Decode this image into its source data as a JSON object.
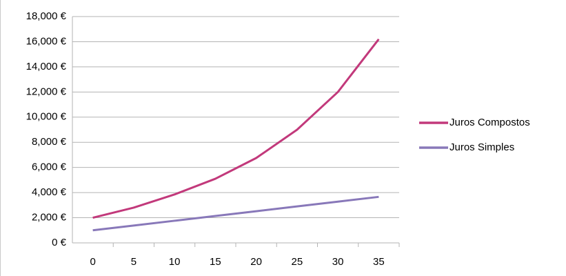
{
  "chart_data": {
    "type": "line",
    "categories": [
      "0",
      "5",
      "10",
      "15",
      "20",
      "25",
      "30",
      "35"
    ],
    "series": [
      {
        "name": "Juros Compostos",
        "color": "#c2397b",
        "values": [
          2000,
          2800,
          3850,
          5100,
          6750,
          9000,
          12000,
          16200
        ]
      },
      {
        "name": "Juros Simples",
        "color": "#8878b9",
        "values": [
          1000,
          1380,
          1760,
          2140,
          2520,
          2900,
          3280,
          3660
        ]
      }
    ],
    "ylim": [
      0,
      18000
    ],
    "yticks": [
      {
        "value": 0,
        "label": "0 €"
      },
      {
        "value": 2000,
        "label": "2,000 €"
      },
      {
        "value": 4000,
        "label": "4,000 €"
      },
      {
        "value": 6000,
        "label": "6,000 €"
      },
      {
        "value": 8000,
        "label": "8,000 €"
      },
      {
        "value": 10000,
        "label": "10,000 €"
      },
      {
        "value": 12000,
        "label": "12,000 €"
      },
      {
        "value": 14000,
        "label": "14,000 €"
      },
      {
        "value": 16000,
        "label": "16,000 €"
      },
      {
        "value": 18000,
        "label": "18,000 €"
      }
    ],
    "grid": true,
    "legend": "right"
  }
}
